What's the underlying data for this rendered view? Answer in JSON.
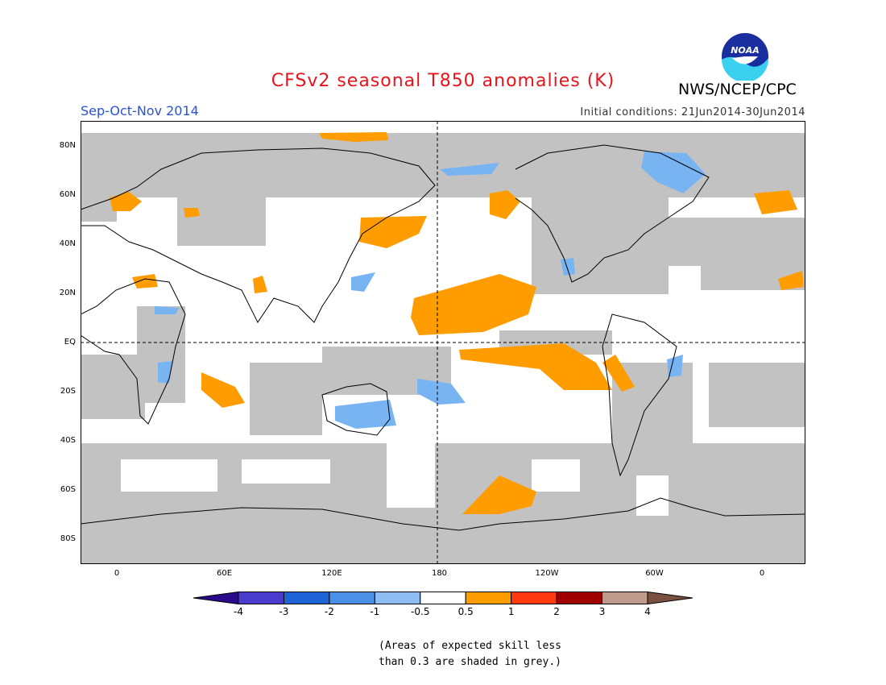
{
  "title": "CFSv2 seasonal T850 anomalies (K)",
  "period": "Sep-Oct-Nov 2014",
  "initial_conditions": "Initial conditions: 21Jun2014-30Jun2014",
  "agency": "NWS/NCEP/CPC",
  "logo_text": "NOAA",
  "lat_labels": [
    {
      "text": "80N",
      "lat": 80
    },
    {
      "text": "60N",
      "lat": 60
    },
    {
      "text": "40N",
      "lat": 40
    },
    {
      "text": "20N",
      "lat": 20
    },
    {
      "text": "EQ",
      "lat": 0
    },
    {
      "text": "20S",
      "lat": -20
    },
    {
      "text": "40S",
      "lat": -40
    },
    {
      "text": "60S",
      "lat": -60
    },
    {
      "text": "80S",
      "lat": -80
    }
  ],
  "lon_labels": [
    {
      "text": "0",
      "lon": 0
    },
    {
      "text": "60E",
      "lon": 60
    },
    {
      "text": "120E",
      "lon": 120
    },
    {
      "text": "180",
      "lon": 180
    },
    {
      "text": "120W",
      "lon": 240
    },
    {
      "text": "60W",
      "lon": 300
    },
    {
      "text": "0",
      "lon": 360
    }
  ],
  "colorbar": {
    "labels": [
      "-4",
      "-3",
      "-2",
      "-1",
      "-0.5",
      "0.5",
      "1",
      "2",
      "3",
      "4"
    ],
    "colors": [
      "#2a0a8c",
      "#4a3ccc",
      "#1f64d6",
      "#4a90e6",
      "#8cbcf2",
      "#ffffff",
      "#ff9c00",
      "#ff3a10",
      "#a00000",
      "#c09a8c",
      "#7a5040"
    ]
  },
  "colors": {
    "low_skill_grey": "#c2c2c2",
    "warm_anomaly": "#ff9c00",
    "cool_anomaly": "#78b4f2"
  },
  "note": "(Areas of expected skill less\n than 0.3 are shaded in grey.)"
}
